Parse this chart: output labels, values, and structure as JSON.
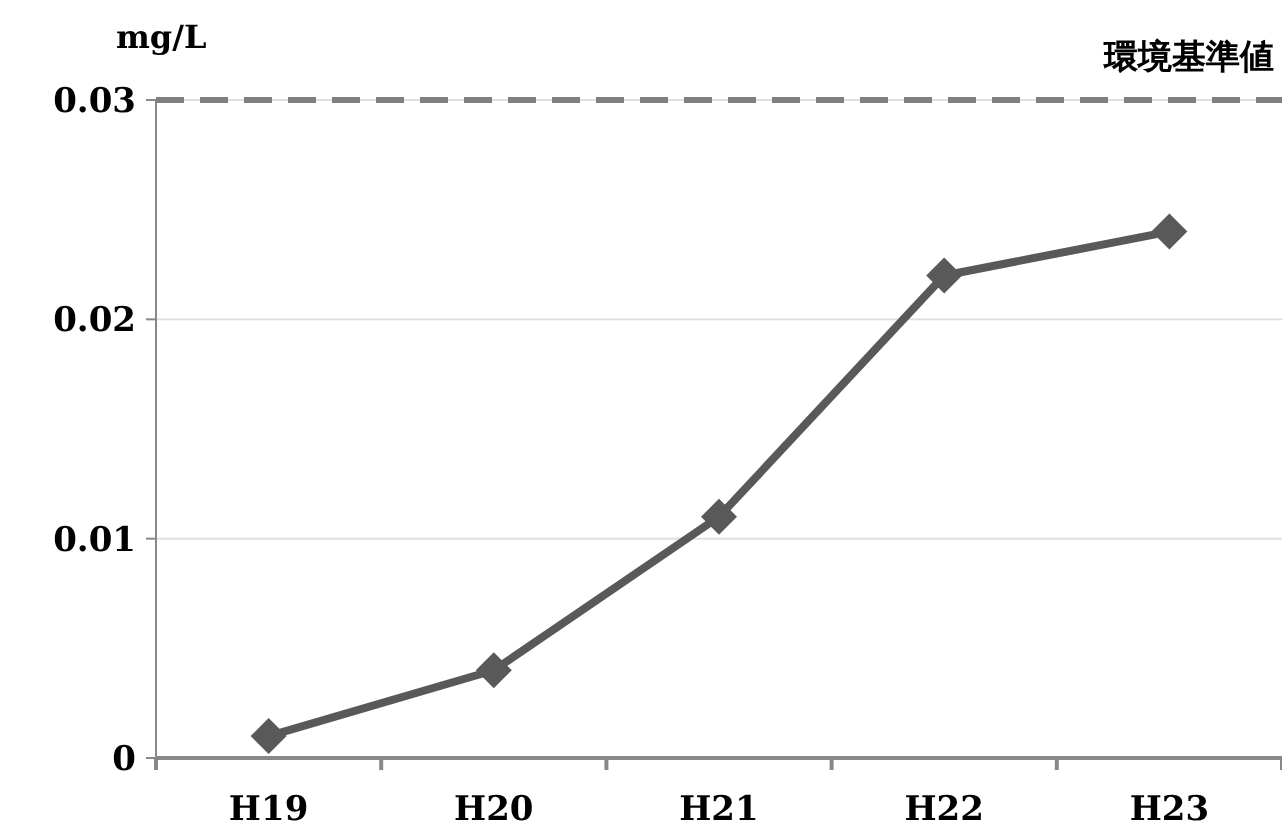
{
  "chart_data": {
    "type": "line",
    "ylabel": "mg/L",
    "categories": [
      "H19",
      "H20",
      "H21",
      "H22",
      "H23"
    ],
    "series": [
      {
        "color": "#595959",
        "values": [
          0.001,
          0.004,
          0.011,
          0.022,
          0.024
        ]
      }
    ],
    "ylim": [
      0,
      0.03
    ],
    "yticks": [
      0,
      0.01,
      0.02,
      0.03
    ],
    "grid": "y",
    "marker": "diamond",
    "line_style": "solid",
    "ref_lines": [
      {
        "axis": "y",
        "value": 0.03,
        "label": "環境基準値",
        "color": "#808080",
        "line_style": "dashed"
      }
    ]
  }
}
